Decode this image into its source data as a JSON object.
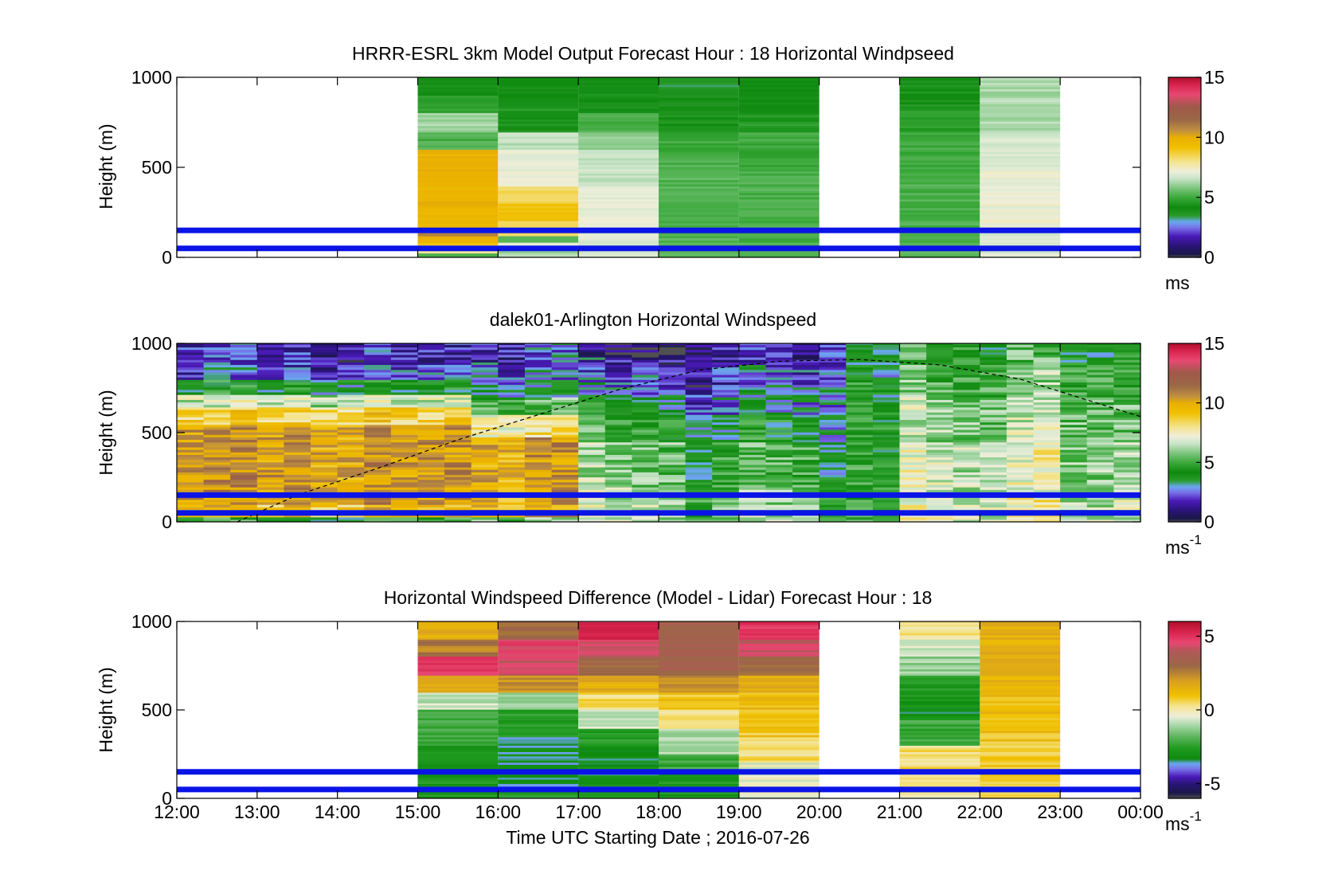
{
  "figure": {
    "xlabel": "Time UTC  Starting Date ; 2016-07-26",
    "x_tick_labels": [
      "12:00",
      "13:00",
      "14:00",
      "15:00",
      "16:00",
      "17:00",
      "18:00",
      "19:00",
      "20:00",
      "21:00",
      "22:00",
      "23:00",
      "00:00"
    ],
    "reference_heights_m": [
      150,
      50
    ],
    "reference_line_color": "#0a14e6"
  },
  "chart_data": [
    {
      "type": "heatmap",
      "title": "HRRR-ESRL 3km Model Output   Forecast Hour : 18 Horizontal Windpseed",
      "ylabel": "Height (m)",
      "xlim_hours": [
        12,
        24
      ],
      "ylim": [
        0,
        1000
      ],
      "y_tick_labels": [
        "0",
        "500",
        "1000"
      ],
      "y_ticks": [
        0,
        500,
        1000
      ],
      "colorbar": {
        "range": [
          0,
          15
        ],
        "tick_labels": [
          "0",
          "5",
          "10",
          "15"
        ],
        "ticks": [
          0,
          5,
          10,
          15
        ],
        "unit": "ms",
        "unit_superscript": "",
        "colormap": "windspeed"
      },
      "columns": [
        {
          "start": 15,
          "end": 16,
          "levels": [
            [
              0,
              30,
              5.5
            ],
            [
              30,
              60,
              8
            ],
            [
              60,
              90,
              9
            ],
            [
              90,
              120,
              10
            ],
            [
              120,
              150,
              11
            ],
            [
              150,
              600,
              9.8
            ],
            [
              600,
              700,
              5.2
            ],
            [
              700,
              800,
              6.2
            ],
            [
              800,
              900,
              4.8
            ],
            [
              900,
              1000,
              4.2
            ]
          ]
        },
        {
          "start": 16,
          "end": 17,
          "levels": [
            [
              0,
              60,
              6.3
            ],
            [
              60,
              90,
              7
            ],
            [
              90,
              120,
              5.2
            ],
            [
              120,
              200,
              8.2
            ],
            [
              200,
              300,
              9.2
            ],
            [
              300,
              400,
              8.5
            ],
            [
              400,
              600,
              7.2
            ],
            [
              600,
              700,
              6.5
            ],
            [
              700,
              850,
              4.5
            ],
            [
              850,
              1000,
              4.2
            ]
          ]
        },
        {
          "start": 17,
          "end": 18,
          "levels": [
            [
              0,
              100,
              6.8
            ],
            [
              100,
              400,
              7
            ],
            [
              400,
              600,
              6.6
            ],
            [
              600,
              700,
              6
            ],
            [
              700,
              800,
              5.2
            ],
            [
              800,
              1000,
              4.3
            ]
          ]
        },
        {
          "start": 18,
          "end": 19,
          "levels": [
            [
              0,
              150,
              5.3
            ],
            [
              150,
              550,
              5.3
            ],
            [
              550,
              700,
              5
            ],
            [
              700,
              800,
              4.4
            ],
            [
              800,
              900,
              4
            ],
            [
              900,
              1000,
              3.6
            ]
          ]
        },
        {
          "start": 19,
          "end": 20,
          "levels": [
            [
              0,
              150,
              5.2
            ],
            [
              150,
              500,
              5.2
            ],
            [
              500,
              700,
              5
            ],
            [
              700,
              800,
              4.6
            ],
            [
              800,
              1000,
              4.2
            ]
          ]
        },
        {
          "start": 21,
          "end": 22,
          "levels": [
            [
              0,
              150,
              5.3
            ],
            [
              150,
              500,
              5.2
            ],
            [
              500,
              700,
              5
            ],
            [
              700,
              850,
              4.7
            ],
            [
              850,
              1000,
              4.4
            ]
          ]
        },
        {
          "start": 22,
          "end": 23,
          "levels": [
            [
              0,
              150,
              7
            ],
            [
              150,
              500,
              7.2
            ],
            [
              500,
              700,
              6.8
            ],
            [
              700,
              850,
              6.3
            ],
            [
              850,
              1000,
              6.3
            ]
          ]
        }
      ]
    },
    {
      "type": "heatmap",
      "title": "dalek01-Arlington  Horizontal Windspeed",
      "ylabel": "Height (m)",
      "xlim_hours": [
        12,
        24
      ],
      "ylim": [
        0,
        1000
      ],
      "y_tick_labels": [
        "0",
        "500",
        "1000"
      ],
      "y_ticks": [
        0,
        500,
        1000
      ],
      "colorbar": {
        "range": [
          0,
          15
        ],
        "tick_labels": [
          "0",
          "5",
          "10",
          "15"
        ],
        "ticks": [
          0,
          5,
          10,
          15
        ],
        "unit": "ms",
        "unit_superscript": "-1",
        "colormap": "windspeed"
      },
      "bin_minutes": 20,
      "segments": [
        [
          [
            12,
            15.8
          ],
          [
            [
              0,
              30,
              5
            ],
            [
              30,
              100,
              9.5
            ],
            [
              100,
              550,
              10.7
            ],
            [
              550,
              650,
              9
            ],
            [
              650,
              720,
              7
            ],
            [
              720,
              800,
              4.5
            ],
            [
              800,
              900,
              2.5
            ],
            [
              900,
              1000,
              2
            ]
          ]
        ],
        [
          [
            15.8,
            17.0
          ],
          [
            [
              0,
              30,
              5.5
            ],
            [
              30,
              100,
              9.3
            ],
            [
              100,
              480,
              9.8
            ],
            [
              480,
              600,
              7.5
            ],
            [
              600,
              700,
              5
            ],
            [
              700,
              800,
              3
            ],
            [
              800,
              900,
              2.2
            ],
            [
              900,
              1000,
              1.8
            ]
          ]
        ],
        [
          [
            17.0,
            18.3
          ],
          [
            [
              0,
              40,
              6.5
            ],
            [
              40,
              200,
              6.8
            ],
            [
              200,
              450,
              6.2
            ],
            [
              450,
              600,
              5
            ],
            [
              600,
              720,
              4
            ],
            [
              720,
              820,
              2.8
            ],
            [
              820,
              920,
              2
            ],
            [
              920,
              1000,
              1.2
            ]
          ]
        ],
        [
          [
            18.3,
            20.1
          ],
          [
            [
              0,
              40,
              6
            ],
            [
              40,
              200,
              5.5
            ],
            [
              200,
              450,
              4.8
            ],
            [
              450,
              600,
              3.8
            ],
            [
              600,
              750,
              2.8
            ],
            [
              750,
              880,
              2
            ],
            [
              880,
              1000,
              1.5
            ]
          ]
        ],
        [
          [
            20.1,
            20.4
          ],
          [
            [
              0,
              200,
              3.8
            ],
            [
              200,
              400,
              3.3
            ],
            [
              400,
              600,
              2.8
            ],
            [
              600,
              800,
              2.3
            ],
            [
              800,
              1000,
              1.8
            ]
          ]
        ],
        [
          [
            20.4,
            21.0
          ],
          [
            [
              0,
              600,
              4.6
            ],
            [
              600,
              800,
              4.2
            ],
            [
              800,
              1000,
              3.8
            ]
          ]
        ],
        [
          [
            21.0,
            24.0
          ],
          [
            [
              0,
              150,
              7.2
            ],
            [
              150,
              450,
              6.8
            ],
            [
              450,
              700,
              6.2
            ],
            [
              700,
              900,
              5.5
            ],
            [
              900,
              1000,
              4.8
            ]
          ]
        ]
      ],
      "boundary_curve": {
        "style": "dashed",
        "points": [
          [
            12.75,
            0
          ],
          [
            13.5,
            150
          ],
          [
            14.5,
            300
          ],
          [
            15.5,
            460
          ],
          [
            16.5,
            600
          ],
          [
            17.5,
            740
          ],
          [
            18.5,
            850
          ],
          [
            19.5,
            900
          ],
          [
            20.5,
            910
          ],
          [
            21.5,
            880
          ],
          [
            22.5,
            800
          ],
          [
            23.5,
            660
          ],
          [
            24.0,
            590
          ]
        ]
      }
    },
    {
      "type": "heatmap",
      "title": "Horizontal Windspeed Difference (Model - Lidar) Forecast Hour : 18",
      "ylabel": "Height (m)",
      "xlim_hours": [
        12,
        24
      ],
      "ylim": [
        0,
        1000
      ],
      "y_tick_labels": [
        "0",
        "500",
        "1000"
      ],
      "y_ticks": [
        0,
        500,
        1000
      ],
      "colorbar": {
        "range": [
          -6,
          6
        ],
        "tick_labels": [
          "-5",
          "0",
          "5"
        ],
        "ticks": [
          -5,
          0,
          5
        ],
        "unit": "ms",
        "unit_superscript": "-1",
        "colormap": "difference"
      },
      "columns": [
        {
          "start": 15,
          "end": 16,
          "levels": [
            [
              0,
              50,
              -2.6
            ],
            [
              50,
              300,
              -2.8
            ],
            [
              300,
              500,
              -2
            ],
            [
              500,
              600,
              -0.8
            ],
            [
              600,
              700,
              1.4
            ],
            [
              700,
              800,
              4.8
            ],
            [
              800,
              900,
              2.6
            ],
            [
              900,
              1000,
              1.6
            ]
          ]
        },
        {
          "start": 16,
          "end": 17,
          "levels": [
            [
              0,
              50,
              -2.6
            ],
            [
              50,
              350,
              -3.3
            ],
            [
              350,
              500,
              -2.6
            ],
            [
              500,
              600,
              -1.2
            ],
            [
              600,
              700,
              2.2
            ],
            [
              700,
              800,
              4.3
            ],
            [
              800,
              900,
              4.6
            ],
            [
              900,
              1000,
              3.2
            ]
          ]
        },
        {
          "start": 17,
          "end": 18,
          "levels": [
            [
              0,
              50,
              -2.6
            ],
            [
              50,
              300,
              -3.1
            ],
            [
              300,
              400,
              -2.5
            ],
            [
              400,
              500,
              -0.8
            ],
            [
              500,
              600,
              0.4
            ],
            [
              600,
              700,
              1.6
            ],
            [
              700,
              800,
              3.2
            ],
            [
              800,
              900,
              4.6
            ],
            [
              900,
              1000,
              5.1
            ]
          ]
        },
        {
          "start": 18,
          "end": 19,
          "levels": [
            [
              0,
              150,
              -2.8
            ],
            [
              150,
              250,
              -2.2
            ],
            [
              250,
              400,
              -1
            ],
            [
              400,
              500,
              0.3
            ],
            [
              500,
              600,
              0.9
            ],
            [
              600,
              700,
              2.2
            ],
            [
              700,
              800,
              3.4
            ],
            [
              800,
              1000,
              3.3
            ]
          ]
        },
        {
          "start": 19,
          "end": 20,
          "levels": [
            [
              0,
              200,
              -0.4
            ],
            [
              200,
              350,
              0.4
            ],
            [
              350,
              500,
              0.9
            ],
            [
              500,
              600,
              1.2
            ],
            [
              600,
              700,
              1.6
            ],
            [
              700,
              800,
              3
            ],
            [
              800,
              900,
              4.4
            ],
            [
              900,
              1000,
              5
            ]
          ]
        },
        {
          "start": 21,
          "end": 22,
          "levels": [
            [
              0,
              100,
              0.1
            ],
            [
              100,
              300,
              0.4
            ],
            [
              300,
              450,
              -2.2
            ],
            [
              450,
              550,
              -3
            ],
            [
              550,
              700,
              -2.6
            ],
            [
              700,
              800,
              -1.2
            ],
            [
              800,
              900,
              -0.6
            ],
            [
              900,
              1000,
              0.2
            ]
          ]
        },
        {
          "start": 22,
          "end": 23,
          "levels": [
            [
              0,
              100,
              0.5
            ],
            [
              100,
              300,
              0.7
            ],
            [
              300,
              450,
              1
            ],
            [
              450,
              600,
              1.2
            ],
            [
              600,
              800,
              1.4
            ],
            [
              800,
              900,
              1.5
            ],
            [
              900,
              1000,
              1.6
            ]
          ]
        }
      ]
    }
  ]
}
